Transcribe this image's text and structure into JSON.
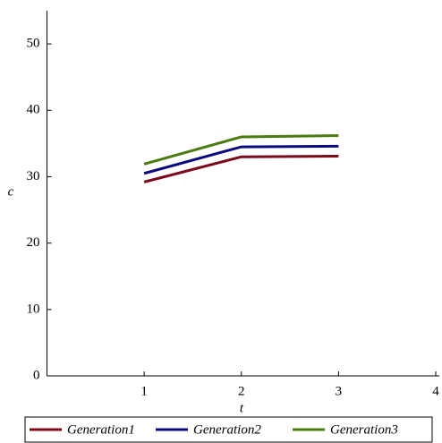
{
  "chart_data": {
    "type": "line",
    "x_label": "t",
    "y_label": "c",
    "x": [
      1,
      2,
      3
    ],
    "series": [
      {
        "name": "Generation1",
        "color": "#7b0a1d",
        "values": [
          29.2,
          33.0,
          33.1
        ]
      },
      {
        "name": "Generation2",
        "color": "#0b0b80",
        "values": [
          30.5,
          34.5,
          34.6
        ]
      },
      {
        "name": "Generation3",
        "color": "#4a7a10",
        "values": [
          31.9,
          36.0,
          36.2
        ]
      }
    ],
    "xlim": [
      0,
      4
    ],
    "xticks": [
      1,
      2,
      3,
      4
    ],
    "ylim": [
      0,
      55
    ],
    "yticks": [
      0,
      10,
      20,
      30,
      40,
      50
    ],
    "legend": "bottom"
  }
}
